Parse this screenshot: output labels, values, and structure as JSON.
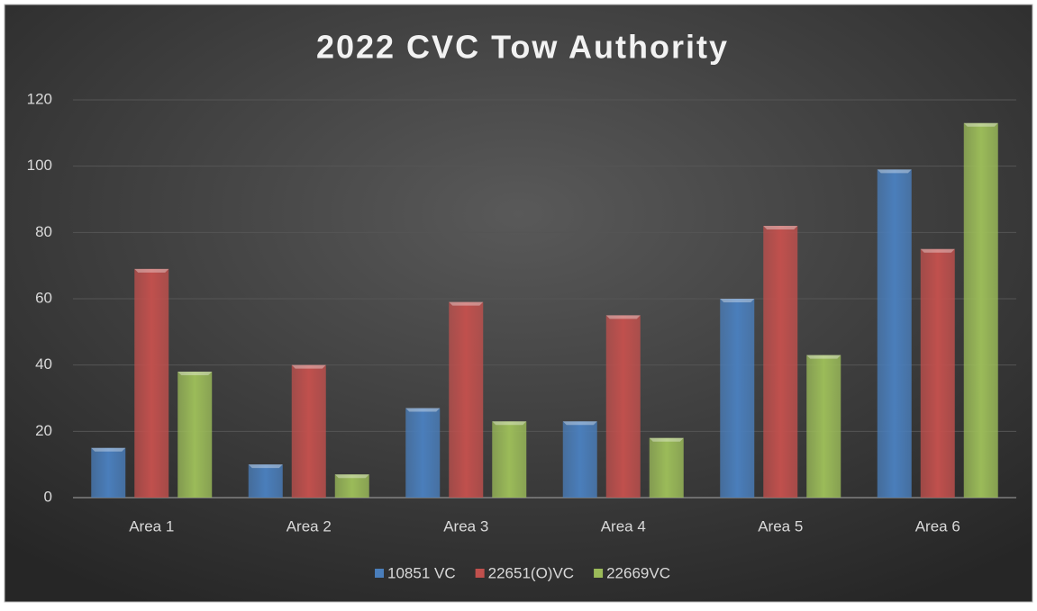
{
  "chart_data": {
    "type": "bar",
    "title": "2022 CVC Tow Authority",
    "categories": [
      "Area 1",
      "Area 2",
      "Area 3",
      "Area 4",
      "Area 5",
      "Area 6"
    ],
    "series": [
      {
        "name": "10851 VC",
        "color": "#4a7ebb",
        "values": [
          15,
          10,
          27,
          23,
          60,
          99
        ]
      },
      {
        "name": "22651(O)VC",
        "color": "#c0504d",
        "values": [
          69,
          40,
          59,
          55,
          82,
          75
        ]
      },
      {
        "name": "22669VC",
        "color": "#9bbb59",
        "values": [
          38,
          7,
          23,
          18,
          43,
          113
        ]
      }
    ],
    "ylim": [
      0,
      120
    ],
    "yticks": [
      0,
      20,
      40,
      60,
      80,
      100,
      120
    ],
    "grid": true,
    "legend": "bottom"
  }
}
